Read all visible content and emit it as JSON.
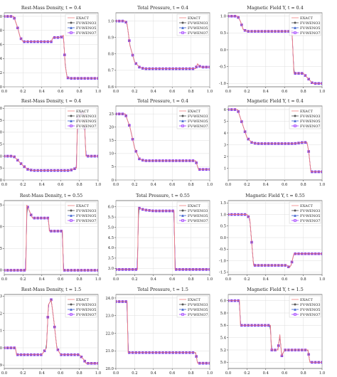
{
  "figure": {
    "legend_labels": [
      "EXACT",
      "FV-WENO3",
      "FV-WENO5",
      "FV-WENO7"
    ],
    "colors": {
      "EXACT": "#f08080",
      "FV-WENO3": "#555555",
      "FV-WENO5": "#3a5fcd",
      "FV-WENO7": "#9b30ff"
    }
  },
  "chart_data": [
    {
      "type": "line",
      "title": "Rest-Mass Density, t = 0.4",
      "xlim": [
        0,
        1
      ],
      "ylim": [
        0,
        1.05
      ],
      "xticks": [
        "0.0",
        "0.2",
        "0.4",
        "0.6",
        "0.8",
        "1.0"
      ],
      "yticks": [
        "0.0",
        "0.2",
        "0.4",
        "0.6",
        "0.8",
        "1.0"
      ],
      "grid": true,
      "legend": "top-right",
      "x": [
        0.0,
        0.05,
        0.1,
        0.14,
        0.17,
        0.2,
        0.3,
        0.4,
        0.5,
        0.52,
        0.55,
        0.6,
        0.63,
        0.65,
        0.67,
        0.7,
        0.8,
        0.9,
        1.0
      ],
      "exact": [
        1.0,
        1.0,
        1.0,
        0.85,
        0.7,
        0.64,
        0.64,
        0.64,
        0.64,
        0.7,
        0.7,
        0.7,
        0.73,
        0.3,
        0.13,
        0.12,
        0.12,
        0.12,
        0.12
      ]
    },
    {
      "type": "line",
      "title": "Total Pressure, t = 0.4",
      "xlim": [
        0,
        1
      ],
      "ylim": [
        0.6,
        1.05
      ],
      "xticks": [
        "0.0",
        "0.2",
        "0.4",
        "0.6",
        "0.8",
        "1.0"
      ],
      "yticks": [
        "0.6",
        "0.7",
        "0.8",
        "0.9",
        "1.0"
      ],
      "grid": true,
      "legend": "top-right",
      "x": [
        0.0,
        0.1,
        0.12,
        0.15,
        0.2,
        0.25,
        0.3,
        0.5,
        0.7,
        0.85,
        0.87,
        0.9,
        1.0
      ],
      "exact": [
        1.0,
        1.0,
        0.98,
        0.85,
        0.75,
        0.72,
        0.71,
        0.71,
        0.71,
        0.71,
        0.74,
        0.72,
        0.72
      ]
    },
    {
      "type": "line",
      "title": "Magnetic Field Y, t = 0.4",
      "xlim": [
        0,
        1
      ],
      "ylim": [
        -1.1,
        1.1
      ],
      "xticks": [
        "0.0",
        "0.2",
        "0.4",
        "0.6",
        "0.8",
        "1.0"
      ],
      "yticks": [
        "-1.0",
        "-0.5",
        "0.0",
        "0.5",
        "1.0"
      ],
      "grid": true,
      "legend": "top-right",
      "x": [
        0.0,
        0.1,
        0.13,
        0.16,
        0.2,
        0.3,
        0.45,
        0.5,
        0.52,
        0.6,
        0.68,
        0.7,
        0.72,
        0.8,
        0.9,
        0.95,
        1.0
      ],
      "exact": [
        1.0,
        1.0,
        0.85,
        0.6,
        0.55,
        0.55,
        0.55,
        0.55,
        0.55,
        0.55,
        0.55,
        -0.7,
        -0.7,
        -0.7,
        -1.0,
        -1.0,
        -1.0
      ]
    },
    {
      "type": "line",
      "title": "Rest-Mass Density, t = 0.4",
      "xlim": [
        0,
        1
      ],
      "ylim": [
        0,
        3.1
      ],
      "xticks": [
        "0.0",
        "0.2",
        "0.4",
        "0.6",
        "0.8",
        "1.0"
      ],
      "yticks": [
        "0.0",
        "0.5",
        "1.0",
        "1.5",
        "2.0",
        "2.5",
        "3.0"
      ],
      "grid": true,
      "legend": "top-right",
      "x": [
        0.0,
        0.1,
        0.15,
        0.2,
        0.25,
        0.3,
        0.5,
        0.7,
        0.77,
        0.78,
        0.82,
        0.85,
        0.87,
        0.9,
        1.0
      ],
      "exact": [
        1.0,
        1.0,
        0.8,
        0.6,
        0.45,
        0.4,
        0.4,
        0.4,
        0.5,
        2.6,
        2.8,
        2.85,
        1.0,
        1.0,
        1.0
      ]
    },
    {
      "type": "line",
      "title": "Total Pressure, t = 0.4",
      "xlim": [
        0,
        1
      ],
      "ylim": [
        0,
        28
      ],
      "xticks": [
        "0.0",
        "0.2",
        "0.4",
        "0.6",
        "0.8",
        "1.0"
      ],
      "yticks": [
        "0",
        "5",
        "10",
        "15",
        "20",
        "25"
      ],
      "grid": true,
      "legend": "top-right",
      "x": [
        0.0,
        0.1,
        0.15,
        0.2,
        0.25,
        0.3,
        0.5,
        0.7,
        0.85,
        0.88,
        1.0
      ],
      "exact": [
        25,
        25,
        20,
        12,
        8,
        7.3,
        7.3,
        7.3,
        7.3,
        4,
        4
      ]
    },
    {
      "type": "line",
      "title": "Magnetic Field Y, t = 0.4",
      "xlim": [
        0,
        1
      ],
      "ylim": [
        0,
        6.3
      ],
      "xticks": [
        "0.0",
        "0.2",
        "0.4",
        "0.6",
        "0.8",
        "1.0"
      ],
      "yticks": [
        "1",
        "2",
        "3",
        "4",
        "5",
        "6"
      ],
      "grid": true,
      "legend": "top-right",
      "x": [
        0.0,
        0.1,
        0.15,
        0.2,
        0.25,
        0.3,
        0.5,
        0.7,
        0.8,
        0.84,
        0.86,
        0.88,
        1.0
      ],
      "exact": [
        6.0,
        6.0,
        4.8,
        3.6,
        3.2,
        3.1,
        3.1,
        3.1,
        3.2,
        3.2,
        2.3,
        0.7,
        0.7
      ]
    },
    {
      "type": "line",
      "title": "Rest-Mass Density, t = 0.55",
      "xlim": [
        0,
        1
      ],
      "ylim": [
        0.9,
        2.6
      ],
      "xticks": [
        "0.0",
        "0.2",
        "0.4",
        "0.6",
        "0.8",
        "1.0"
      ],
      "yticks": [
        "1.0",
        "1.5",
        "2.0",
        "2.5"
      ],
      "grid": true,
      "legend": "top-right",
      "x": [
        0.0,
        0.2,
        0.23,
        0.24,
        0.27,
        0.3,
        0.4,
        0.47,
        0.48,
        0.6,
        0.62,
        0.63,
        0.7,
        1.0
      ],
      "exact": [
        1.0,
        1.0,
        1.0,
        2.5,
        2.35,
        2.2,
        2.2,
        2.2,
        1.9,
        1.9,
        1.9,
        1.0,
        1.0,
        1.0
      ]
    },
    {
      "type": "line",
      "title": "Total Pressure, t = 0.55",
      "xlim": [
        0,
        1
      ],
      "ylim": [
        2.7,
        6.3
      ],
      "xticks": [
        "0.0",
        "0.2",
        "0.4",
        "0.6",
        "0.8",
        "1.0"
      ],
      "yticks": [
        "3.0",
        "3.5",
        "4.0",
        "4.5",
        "5.0",
        "5.5",
        "6.0"
      ],
      "grid": true,
      "legend": "top-right",
      "x": [
        0.0,
        0.2,
        0.23,
        0.24,
        0.3,
        0.4,
        0.5,
        0.6,
        0.62,
        0.63,
        0.7,
        1.0
      ],
      "exact": [
        2.95,
        2.95,
        2.95,
        5.95,
        5.85,
        5.8,
        5.8,
        5.8,
        5.8,
        2.95,
        2.95,
        2.95
      ]
    },
    {
      "type": "line",
      "title": "Magnetic Field Y, t = 0.55",
      "xlim": [
        0,
        1
      ],
      "ylim": [
        -1.6,
        1.6
      ],
      "xticks": [
        "0.0",
        "0.2",
        "0.4",
        "0.6",
        "0.8",
        "1.0"
      ],
      "yticks": [
        "-1.5",
        "-1.0",
        "-0.5",
        "0.0",
        "0.5",
        "1.0",
        "1.5"
      ],
      "grid": true,
      "legend": "top-right",
      "x": [
        0.0,
        0.2,
        0.23,
        0.27,
        0.3,
        0.5,
        0.63,
        0.65,
        0.67,
        0.7,
        0.72,
        0.8,
        1.0
      ],
      "exact": [
        1.0,
        1.0,
        0.8,
        -1.2,
        -1.2,
        -1.2,
        -1.2,
        -1.3,
        -1.2,
        -0.7,
        -0.7,
        -0.7,
        -0.7
      ]
    },
    {
      "type": "line",
      "title": "Rest-Mass Density, t = 1.5",
      "xlim": [
        0,
        1
      ],
      "ylim": [
        7.88,
        8.31
      ],
      "xticks": [
        "0.0",
        "0.2",
        "0.4",
        "0.6",
        "0.8",
        "1.0"
      ],
      "yticks": [
        "7.9",
        "8.0",
        "8.1",
        "8.2",
        "8.3"
      ],
      "grid": true,
      "legend": "top-right",
      "x": [
        0.0,
        0.12,
        0.13,
        0.2,
        0.4,
        0.45,
        0.47,
        0.5,
        0.53,
        0.56,
        0.6,
        0.65,
        0.8,
        0.85,
        0.87,
        1.0
      ],
      "exact": [
        8.0,
        8.0,
        7.96,
        7.96,
        7.96,
        8.0,
        8.25,
        8.28,
        8.15,
        8.0,
        7.96,
        7.96,
        7.96,
        7.93,
        7.91,
        7.91
      ]
    },
    {
      "type": "line",
      "title": "Total Pressure, t = 1.5",
      "xlim": [
        0,
        1
      ],
      "ylim": [
        20,
        24.2
      ],
      "xticks": [
        "0.0",
        "0.2",
        "0.4",
        "0.6",
        "0.8",
        "1.0"
      ],
      "yticks": [
        "20.0",
        "21.0",
        "22.0",
        "23.0",
        "24.0"
      ],
      "grid": true,
      "legend": "top-right",
      "x": [
        0.0,
        0.12,
        0.13,
        0.2,
        0.5,
        0.6,
        0.8,
        0.85,
        0.87,
        1.0
      ],
      "exact": [
        23.8,
        23.8,
        20.9,
        20.9,
        20.9,
        20.9,
        20.9,
        20.9,
        20.3,
        20.3
      ]
    },
    {
      "type": "line",
      "title": "Magnetic Field Y, t = 1.5",
      "xlim": [
        0,
        1
      ],
      "ylim": [
        4.9,
        6.1
      ],
      "xticks": [
        "0.0",
        "0.2",
        "0.4",
        "0.6",
        "0.8",
        "1.0"
      ],
      "yticks": [
        "5.0",
        "5.2",
        "5.4",
        "5.6",
        "5.8",
        "6.0"
      ],
      "grid": true,
      "legend": "top-right",
      "x": [
        0.0,
        0.12,
        0.13,
        0.2,
        0.45,
        0.46,
        0.53,
        0.55,
        0.57,
        0.6,
        0.8,
        0.85,
        0.87,
        1.0
      ],
      "exact": [
        6.0,
        6.0,
        5.6,
        5.6,
        5.6,
        5.2,
        5.2,
        5.45,
        5.1,
        5.2,
        5.2,
        5.2,
        5.0,
        5.0
      ]
    }
  ]
}
